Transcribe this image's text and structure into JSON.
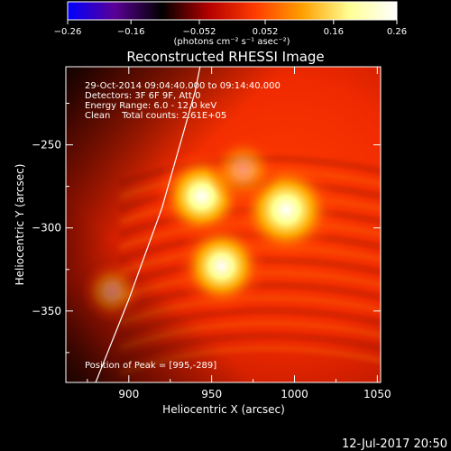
{
  "chart_data": {
    "type": "heatmap",
    "title": "Reconstructed RHESSI Image",
    "xlabel": "Heliocentric X (arcsec)",
    "ylabel": "Heliocentric Y (arcsec)",
    "xlim": [
      862,
      1052
    ],
    "ylim": [
      -393,
      -203
    ],
    "x_ticks": [
      900,
      950,
      1000,
      1050
    ],
    "x_tick_labels": [
      "900",
      "950",
      "1000",
      "1050"
    ],
    "y_ticks": [
      -250,
      -300,
      -350
    ],
    "y_tick_labels": [
      "−250",
      "−300",
      "−350"
    ],
    "colorbar": {
      "range": [
        -0.26,
        0.26
      ],
      "ticks": [
        -0.26,
        -0.16,
        -0.052,
        0.052,
        0.16,
        0.26
      ],
      "tick_labels": [
        "−0.26",
        "−0.16",
        "−0.052",
        "0.052",
        "0.16",
        "0.26"
      ],
      "unit_label": "(photons cm⁻² s⁻¹ asec⁻²)",
      "colors": [
        "#0000ff",
        "#5a0096",
        "#000000",
        "#b40000",
        "#ff3c00",
        "#ffa000",
        "#ffff96",
        "#ffffff"
      ]
    },
    "annotations": [
      "29-Oct-2014 09:04:40.000 to 09:14:40.000",
      "Detectors: 3F 6F 9F, Att 0",
      "Energy Range: 6.0 - 12.0 keV",
      "Clean    Total counts: 2.61E+05"
    ],
    "peak_label": "Position of Peak = [995,-289]",
    "sources": [
      {
        "x": 995,
        "y": -289,
        "peak": 0.26,
        "sigma": 10
      },
      {
        "x": 944,
        "y": -281,
        "peak": 0.24,
        "sigma": 9
      },
      {
        "x": 956,
        "y": -323,
        "peak": 0.23,
        "sigma": 9
      },
      {
        "x": 969,
        "y": -265,
        "peak": 0.09,
        "sigma": 7
      },
      {
        "x": 890,
        "y": -338,
        "peak": 0.07,
        "sigma": 6
      }
    ],
    "limb": [
      [
        880,
        -393
      ],
      [
        900,
        -343
      ],
      [
        920,
        -288
      ],
      [
        940,
        -218
      ],
      [
        943,
        -203
      ]
    ],
    "grid": false
  },
  "footer_timestamp": "12-Jul-2017 20:50"
}
